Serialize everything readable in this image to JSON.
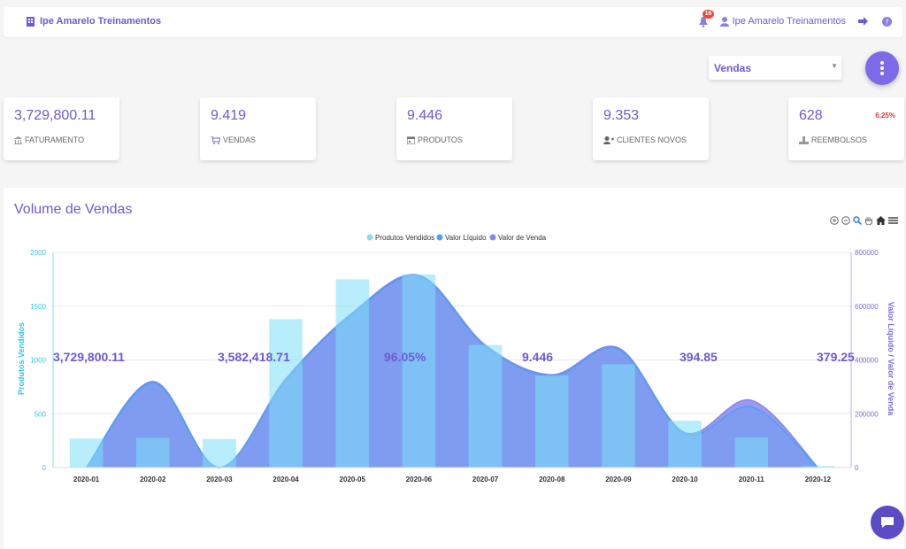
{
  "header": {
    "brand": "Ipe Amarelo Treinamentos",
    "notifications_count": "16",
    "user_name": "Ipe Amarelo Treinamentos"
  },
  "filter": {
    "selected": "Vendas"
  },
  "cards": [
    {
      "value": "3,729,800.11",
      "label": "FATURAMENTO",
      "icon": "bank-icon"
    },
    {
      "value": "9.419",
      "label": "VENDAS",
      "icon": "cart-icon"
    },
    {
      "value": "9.446",
      "label": "PRODUTOS",
      "icon": "calendar-icon"
    },
    {
      "value": "9.353",
      "label": "CLIENTES NOVOS",
      "icon": "user-plus-icon"
    },
    {
      "value": "628",
      "label": "REEMBOLSOS",
      "icon": "refund-icon",
      "percent": "6,25%"
    }
  ],
  "panel": {
    "title": "Volume de Vendas"
  },
  "chart_data": {
    "type": "bar",
    "categories": [
      "2020-01",
      "2020-02",
      "2020-03",
      "2020-04",
      "2020-05",
      "2020-06",
      "2020-07",
      "2020-08",
      "2020-09",
      "2020-10",
      "2020-11",
      "2020-12"
    ],
    "series": [
      {
        "name": "Produtos Vendidos",
        "type": "bar",
        "axis": "left",
        "color": "#7ee0f7",
        "values": [
          270,
          275,
          265,
          1380,
          1750,
          1795,
          1140,
          855,
          960,
          435,
          280,
          15
        ]
      },
      {
        "name": "Valor Líquido",
        "type": "area",
        "axis": "right",
        "color": "#4aa3f0",
        "values": [
          0,
          315000,
          0,
          325000,
          570000,
          710000,
          450000,
          340000,
          440000,
          125000,
          225000,
          0
        ]
      },
      {
        "name": "Valor de Venda",
        "type": "area",
        "axis": "right",
        "color": "#8b86ef",
        "values": [
          0,
          320000,
          0,
          330000,
          575000,
          715000,
          455000,
          345000,
          445000,
          130000,
          250000,
          0
        ]
      }
    ],
    "ylabel_left": "Produtos Vendidos",
    "ylabel_right": "Valor Líquido / Valor de Venda",
    "ylim_left": [
      0,
      2000
    ],
    "ylim_right": [
      0,
      800000
    ],
    "yticks_left": [
      "0",
      "500",
      "1000",
      "1500",
      "2000"
    ],
    "yticks_right": [
      "0",
      "200000",
      "400000",
      "600000",
      "800000"
    ],
    "legend": "top-center",
    "grid": true
  },
  "summary": [
    "3,729,800.11",
    "3,582,418.71",
    "96.05%",
    "9.446",
    "394.85",
    "379.25"
  ],
  "colors": {
    "accent": "#6b5bd6",
    "fab": "#7d6ae8",
    "bar": "#7ee0f7",
    "area": "#8b86ef",
    "alert": "#e53935"
  }
}
